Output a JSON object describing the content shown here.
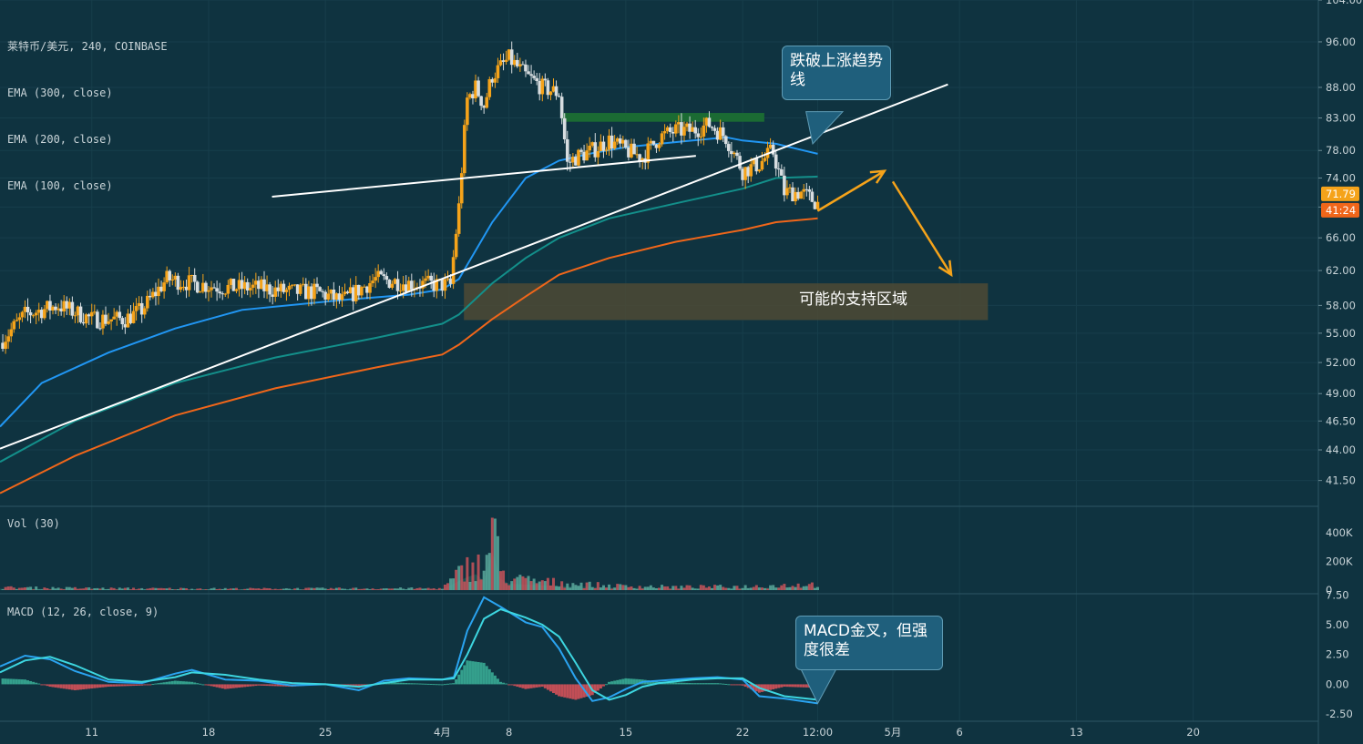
{
  "legend": {
    "symbol": "莱特币/美元, 240, COINBASE",
    "ema300": "EMA (300, close)",
    "ema200": "EMA (200, close)",
    "ema100": "EMA (100, close)",
    "vol": "Vol (30)",
    "macd": "MACD (12, 26, close, 9)"
  },
  "annotations": {
    "breakdown": "跌破上涨趋势线",
    "support_zone": "可能的支持区域",
    "macd_note": "MACD金叉，但强度很差"
  },
  "price_tags": {
    "last_price": "71.79",
    "countdown": "41:24"
  },
  "colors": {
    "background": "#0f3340",
    "candle": "#f5a31a",
    "candle_down": "#d7dde0",
    "ema100": "#2196f3",
    "ema200": "#138f8a",
    "ema300": "#f0661a",
    "trendline": "#ffffff",
    "support_zone": "#4d4a35",
    "resistance_zone": "#1b6b33",
    "arrow": "#f5a31a",
    "macd_line": "#2aa3f0",
    "signal_line": "#3dd6e0",
    "hist_pos": "#3bb39a",
    "hist_neg": "#e0535a"
  },
  "chart_data": {
    "type": "candlestick",
    "price_axis": {
      "scale": "log",
      "ticks": [
        "104.00",
        "96.00",
        "88.00",
        "83.00",
        "78.00",
        "74.00",
        "70.00",
        "66.00",
        "62.00",
        "58.00",
        "55.00",
        "52.00",
        "49.00",
        "46.50",
        "44.00",
        "41.50"
      ],
      "range": [
        39.5,
        104
      ]
    },
    "time_axis": {
      "ticks": [
        "11",
        "18",
        "25",
        "4月",
        "8",
        "15",
        "22",
        "12:00",
        "5月",
        "6",
        "13",
        "20"
      ],
      "tick_days": [
        11,
        18,
        25,
        32,
        36,
        43,
        50,
        54.5,
        59,
        63,
        70,
        77
      ],
      "range_days": [
        5.5,
        84.5
      ]
    },
    "price_path": [
      [
        5.5,
        54
      ],
      [
        7,
        57
      ],
      [
        9,
        58
      ],
      [
        11,
        56.5
      ],
      [
        13,
        56.5
      ],
      [
        14,
        57.5
      ],
      [
        15.5,
        61
      ],
      [
        17,
        60.5
      ],
      [
        19,
        60
      ],
      [
        21,
        60
      ],
      [
        23,
        59.5
      ],
      [
        24.5,
        59.5
      ],
      [
        26,
        58.5
      ],
      [
        28,
        61
      ],
      [
        30,
        60.5
      ],
      [
        32,
        60.3
      ],
      [
        32.5,
        60.3
      ],
      [
        33,
        70
      ],
      [
        33.5,
        86
      ],
      [
        34,
        88
      ],
      [
        34.5,
        85
      ],
      [
        35,
        90
      ],
      [
        36,
        93
      ],
      [
        37,
        90
      ],
      [
        38,
        88
      ],
      [
        39,
        87
      ],
      [
        39.5,
        76
      ],
      [
        40,
        77
      ],
      [
        41,
        78
      ],
      [
        42,
        79.5
      ],
      [
        43,
        78
      ],
      [
        44,
        77
      ],
      [
        45,
        80
      ],
      [
        46,
        81
      ],
      [
        47,
        81
      ],
      [
        48,
        82
      ],
      [
        49,
        80
      ],
      [
        50,
        75
      ],
      [
        51,
        76
      ],
      [
        51.8,
        78
      ],
      [
        52.5,
        72
      ],
      [
        53.5,
        72
      ],
      [
        54.5,
        70.5
      ]
    ],
    "ema100": [
      [
        5.5,
        46
      ],
      [
        8,
        50
      ],
      [
        12,
        53
      ],
      [
        16,
        55.5
      ],
      [
        20,
        57.5
      ],
      [
        26,
        58.6
      ],
      [
        30,
        59.2
      ],
      [
        32,
        59.8
      ],
      [
        33,
        61
      ],
      [
        35,
        68
      ],
      [
        37,
        74
      ],
      [
        39,
        76.5
      ],
      [
        41,
        77.6
      ],
      [
        43,
        78.5
      ],
      [
        45,
        79
      ],
      [
        47,
        79.5
      ],
      [
        49,
        80
      ],
      [
        50,
        79.5
      ],
      [
        52,
        79
      ],
      [
        54.5,
        77.5
      ]
    ],
    "ema200": [
      [
        5.5,
        43
      ],
      [
        10,
        46.5
      ],
      [
        16,
        50
      ],
      [
        22,
        52.5
      ],
      [
        28,
        54.5
      ],
      [
        32,
        56
      ],
      [
        33,
        57
      ],
      [
        35,
        60.5
      ],
      [
        37,
        63.5
      ],
      [
        39,
        66
      ],
      [
        42,
        68.5
      ],
      [
        46,
        70.5
      ],
      [
        50,
        72.5
      ],
      [
        52,
        74
      ],
      [
        54.5,
        74.2
      ]
    ],
    "ema300": [
      [
        5.5,
        40.5
      ],
      [
        10,
        43.5
      ],
      [
        16,
        47
      ],
      [
        22,
        49.5
      ],
      [
        28,
        51.5
      ],
      [
        32,
        52.8
      ],
      [
        33,
        53.8
      ],
      [
        35,
        56.5
      ],
      [
        37,
        59
      ],
      [
        39,
        61.5
      ],
      [
        42,
        63.5
      ],
      [
        46,
        65.5
      ],
      [
        50,
        67
      ],
      [
        52,
        68
      ],
      [
        54.5,
        68.5
      ]
    ],
    "support_zone": {
      "days": [
        33.3,
        64.7
      ],
      "price": [
        56.4,
        60.5
      ]
    },
    "resistance_zone": {
      "days": [
        39.2,
        51.3
      ],
      "price": [
        82.4,
        83.8
      ]
    },
    "trendlines": [
      {
        "name": "上涨趋势线",
        "from": [
          5.5,
          44.1
        ],
        "to": [
          62.3,
          88.5
        ]
      },
      {
        "name": "",
        "from": [
          21.8,
          71.4
        ],
        "to": [
          47.2,
          77.2
        ]
      }
    ],
    "arrows": [
      {
        "from": [
          54.5,
          69.5
        ],
        "to": [
          58.5,
          75
        ]
      },
      {
        "from": [
          59,
          73.5
        ],
        "to": [
          62.5,
          61.5
        ]
      }
    ],
    "volume": {
      "axis_ticks": [
        "400K",
        "200K",
        "0"
      ],
      "range": [
        0,
        520
      ],
      "levels": [
        [
          5.5,
          18
        ],
        [
          12,
          12
        ],
        [
          20,
          10
        ],
        [
          28,
          12
        ],
        [
          32,
          12
        ],
        [
          32.7,
          80
        ],
        [
          33.3,
          150
        ],
        [
          34,
          200
        ],
        [
          34.5,
          120
        ],
        [
          35,
          480
        ],
        [
          35.5,
          140
        ],
        [
          36,
          80
        ],
        [
          38,
          60
        ],
        [
          40,
          45
        ],
        [
          42,
          30
        ],
        [
          46,
          22
        ],
        [
          50,
          25
        ],
        [
          54,
          40
        ]
      ]
    },
    "macd": {
      "axis_ticks": [
        "7.50",
        "5.00",
        "2.50",
        "0.00",
        "-2.50"
      ],
      "range": [
        -3.1,
        7.6
      ],
      "macd_line": [
        [
          5.5,
          1.5
        ],
        [
          7,
          2.4
        ],
        [
          8.5,
          2.1
        ],
        [
          10,
          1.1
        ],
        [
          12,
          0.2
        ],
        [
          14,
          0.1
        ],
        [
          16,
          0.9
        ],
        [
          17,
          1.2
        ],
        [
          19,
          0.4
        ],
        [
          21,
          0.3
        ],
        [
          23,
          -0.1
        ],
        [
          25,
          0.0
        ],
        [
          27,
          -0.5
        ],
        [
          28.5,
          0.3
        ],
        [
          30,
          0.5
        ],
        [
          32,
          0.4
        ],
        [
          32.7,
          0.6
        ],
        [
          33.5,
          4.5
        ],
        [
          34.5,
          7.3
        ],
        [
          35.5,
          6.5
        ],
        [
          37,
          5.2
        ],
        [
          38,
          4.8
        ],
        [
          39,
          3.0
        ],
        [
          40,
          0.5
        ],
        [
          41,
          -1.4
        ],
        [
          42,
          -1.1
        ],
        [
          43,
          -0.4
        ],
        [
          44,
          0.2
        ],
        [
          45,
          0.3
        ],
        [
          47,
          0.5
        ],
        [
          48.5,
          0.6
        ],
        [
          50,
          0.4
        ],
        [
          51,
          -1.0
        ],
        [
          52.5,
          -1.2
        ],
        [
          54.5,
          -1.6
        ]
      ],
      "signal_line": [
        [
          5.5,
          1.0
        ],
        [
          7,
          2.0
        ],
        [
          8.5,
          2.3
        ],
        [
          10,
          1.6
        ],
        [
          12,
          0.4
        ],
        [
          14,
          0.2
        ],
        [
          16,
          0.6
        ],
        [
          17,
          1.0
        ],
        [
          19,
          0.8
        ],
        [
          21,
          0.4
        ],
        [
          23,
          0.1
        ],
        [
          25,
          0.0
        ],
        [
          27,
          -0.2
        ],
        [
          28.5,
          0.1
        ],
        [
          30,
          0.4
        ],
        [
          32,
          0.4
        ],
        [
          32.7,
          0.5
        ],
        [
          33.5,
          2.5
        ],
        [
          34.5,
          5.5
        ],
        [
          35.5,
          6.3
        ],
        [
          37,
          5.6
        ],
        [
          38,
          5.0
        ],
        [
          39,
          4.0
        ],
        [
          40,
          1.8
        ],
        [
          41,
          -0.5
        ],
        [
          42,
          -1.3
        ],
        [
          43,
          -0.9
        ],
        [
          44,
          -0.2
        ],
        [
          45,
          0.1
        ],
        [
          47,
          0.4
        ],
        [
          48.5,
          0.5
        ],
        [
          50,
          0.5
        ],
        [
          51,
          -0.3
        ],
        [
          52.5,
          -1.0
        ],
        [
          54.5,
          -1.3
        ]
      ]
    }
  }
}
